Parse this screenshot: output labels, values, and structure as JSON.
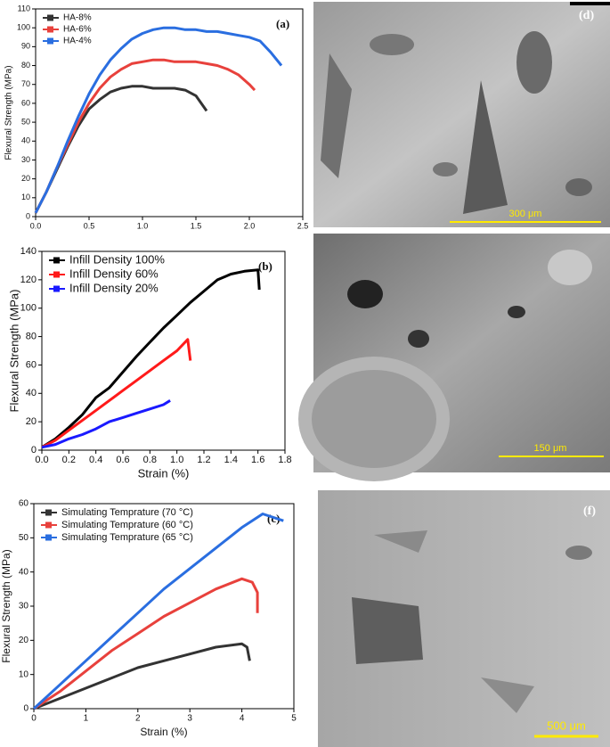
{
  "chart_data": [
    {
      "type": "line",
      "panel_label": "(a)",
      "y_label": "Flexural Strength (MPa)",
      "xlim": [
        0,
        2.5
      ],
      "xticks": [
        {
          "value": 0,
          "label": "0.0"
        },
        0.5,
        {
          "value": 1,
          "label": "1.0"
        },
        1.5,
        {
          "value": 2,
          "label": "2.0"
        },
        2.5
      ],
      "ylim": [
        0,
        110
      ],
      "yticks": [
        0,
        10,
        20,
        30,
        40,
        50,
        60,
        70,
        80,
        90,
        100,
        110
      ],
      "series": [
        {
          "name": "HA-8%",
          "color": "#333333",
          "x": [
            0,
            0.1,
            0.2,
            0.3,
            0.4,
            0.5,
            0.6,
            0.7,
            0.8,
            0.9,
            1.0,
            1.1,
            1.2,
            1.3,
            1.4,
            1.5,
            1.55,
            1.6
          ],
          "values": [
            2,
            13,
            25,
            37,
            48,
            57,
            62,
            66,
            68,
            69,
            69,
            68,
            68,
            68,
            67,
            64,
            60,
            56
          ]
        },
        {
          "name": "HA-6%",
          "color": "#e8413c",
          "x": [
            0,
            0.1,
            0.2,
            0.3,
            0.4,
            0.5,
            0.6,
            0.7,
            0.8,
            0.9,
            1.0,
            1.1,
            1.2,
            1.3,
            1.4,
            1.5,
            1.6,
            1.7,
            1.8,
            1.9,
            2.0,
            2.05
          ],
          "values": [
            2,
            13,
            26,
            38,
            50,
            60,
            68,
            74,
            78,
            81,
            82,
            83,
            83,
            82,
            82,
            82,
            81,
            80,
            78,
            75,
            70,
            67
          ]
        },
        {
          "name": "HA-4%",
          "color": "#2a6ee0",
          "x": [
            0,
            0.1,
            0.2,
            0.3,
            0.4,
            0.5,
            0.6,
            0.7,
            0.8,
            0.9,
            1.0,
            1.1,
            1.2,
            1.3,
            1.4,
            1.5,
            1.6,
            1.7,
            1.8,
            1.9,
            2.0,
            2.1,
            2.2,
            2.3
          ],
          "values": [
            2,
            13,
            26,
            40,
            53,
            65,
            75,
            83,
            89,
            94,
            97,
            99,
            100,
            100,
            99,
            99,
            98,
            98,
            97,
            96,
            95,
            93,
            87,
            80
          ]
        }
      ]
    },
    {
      "type": "line",
      "panel_label": "(b)",
      "y_label": "Flexural Strength (MPa)",
      "x_label": "Strain (%)",
      "xlim": [
        0,
        1.8
      ],
      "xticks": [
        {
          "value": 0,
          "label": "0.0"
        },
        0.2,
        0.4,
        0.6,
        0.8,
        {
          "value": 1,
          "label": "1.0"
        },
        1.2,
        1.4,
        1.6,
        1.8
      ],
      "ylim": [
        0,
        140
      ],
      "yticks": [
        0,
        20,
        40,
        60,
        80,
        100,
        120,
        140
      ],
      "series": [
        {
          "name": "Infill Density 100%",
          "color": "#000000",
          "x": [
            0,
            0.1,
            0.2,
            0.3,
            0.4,
            0.5,
            0.6,
            0.7,
            0.8,
            0.9,
            1.0,
            1.1,
            1.2,
            1.3,
            1.4,
            1.5,
            1.6,
            1.61
          ],
          "values": [
            2,
            8,
            16,
            25,
            37,
            44,
            55,
            66,
            76,
            86,
            95,
            104,
            112,
            120,
            124,
            126,
            127,
            113
          ]
        },
        {
          "name": "Infill Density 60%",
          "color": "#ff1a1a",
          "x": [
            0,
            0.1,
            0.2,
            0.3,
            0.4,
            0.5,
            0.6,
            0.7,
            0.8,
            0.9,
            1.0,
            1.08,
            1.1
          ],
          "values": [
            2,
            7,
            14,
            21,
            28,
            35,
            42,
            49,
            56,
            63,
            70,
            78,
            63
          ]
        },
        {
          "name": "Infill Density 20%",
          "color": "#1a1aff",
          "x": [
            0,
            0.1,
            0.2,
            0.3,
            0.4,
            0.5,
            0.6,
            0.7,
            0.8,
            0.9,
            0.95
          ],
          "values": [
            2,
            4,
            8,
            11,
            15,
            20,
            23,
            26,
            29,
            32,
            35
          ]
        }
      ]
    },
    {
      "type": "line",
      "panel_label": "(c)",
      "y_label": "Flexural Strength (MPa)",
      "x_label": "Strain (%)",
      "xlim": [
        0,
        5
      ],
      "xticks": [
        0,
        1,
        2,
        3,
        4,
        5
      ],
      "ylim": [
        0,
        60
      ],
      "yticks": [
        0,
        10,
        20,
        30,
        40,
        50,
        60
      ],
      "series": [
        {
          "name": "Simulating Temprature (70 °C)",
          "color": "#333333",
          "x": [
            0,
            0.5,
            1,
            1.5,
            2,
            2.5,
            3,
            3.5,
            4,
            4.1,
            4.15
          ],
          "values": [
            0,
            3,
            6,
            9,
            12,
            14,
            16,
            18,
            19,
            18,
            14
          ]
        },
        {
          "name": "Simulating Temprature (60 °C)",
          "color": "#e8413c",
          "x": [
            0,
            0.5,
            1,
            1.5,
            2,
            2.5,
            3,
            3.5,
            4,
            4.2,
            4.3,
            4.3
          ],
          "values": [
            0,
            5,
            11,
            17,
            22,
            27,
            31,
            35,
            38,
            37,
            34,
            28
          ]
        },
        {
          "name": "Simulating Temprature (65 °C)",
          "color": "#2a6ee0",
          "x": [
            0,
            0.5,
            1,
            1.5,
            2,
            2.5,
            3,
            3.5,
            4,
            4.4,
            4.8
          ],
          "values": [
            0,
            7,
            14,
            21,
            28,
            35,
            41,
            47,
            53,
            57,
            55
          ]
        }
      ]
    }
  ],
  "images": [
    {
      "label": "(d)",
      "scale": "300 μm"
    },
    {
      "scale": "150 μm"
    },
    {
      "label": "(f)",
      "scale": "500 μm"
    }
  ]
}
